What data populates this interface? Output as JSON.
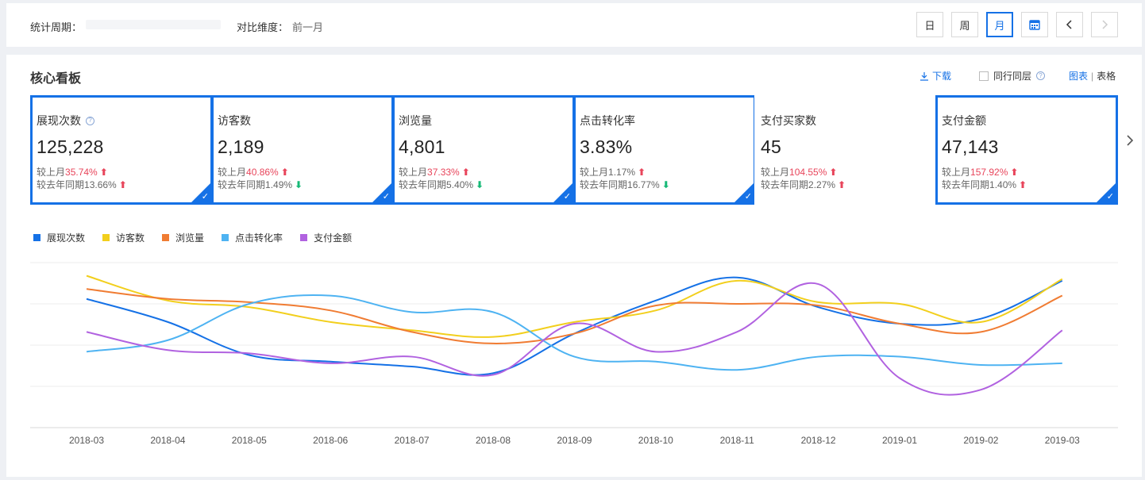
{
  "topbar": {
    "period_label": "统计周期：",
    "compare_label": "对比维度：",
    "compare_value": "前一月",
    "buttons": {
      "day": "日",
      "week": "周",
      "month": "月"
    }
  },
  "main": {
    "title": "核心看板",
    "download": "下载",
    "peer": "同行同层",
    "view_chart": "图表",
    "view_sep": "|",
    "view_table": "表格"
  },
  "cards": [
    {
      "name": "展现次数",
      "value": "125,228",
      "mom_label": "较上月",
      "mom": "35.74%",
      "mom_dir": "up",
      "yoy_label": "较去年同期",
      "yoy": "13.66%",
      "yoy_dir": "up",
      "selected": true,
      "help": true
    },
    {
      "name": "访客数",
      "value": "2,189",
      "mom_label": "较上月",
      "mom": "40.86%",
      "mom_dir": "up",
      "yoy_label": "较去年同期",
      "yoy": "1.49%",
      "yoy_dir": "down",
      "selected": true
    },
    {
      "name": "浏览量",
      "value": "4,801",
      "mom_label": "较上月",
      "mom": "37.33%",
      "mom_dir": "up",
      "yoy_label": "较去年同期",
      "yoy": "5.40%",
      "yoy_dir": "down",
      "selected": true
    },
    {
      "name": "点击转化率",
      "value": "3.83%",
      "mom_label": "较上月",
      "mom": "1.17%",
      "mom_dir": "up",
      "yoy_label": "较去年同期",
      "yoy": "16.77%",
      "yoy_dir": "down",
      "selected": true,
      "mom_plain": true
    },
    {
      "name": "支付买家数",
      "value": "45",
      "mom_label": "较上月",
      "mom": "104.55%",
      "mom_dir": "up",
      "yoy_label": "较去年同期",
      "yoy": "2.27%",
      "yoy_dir": "up",
      "selected": false
    },
    {
      "name": "支付金额",
      "value": "47,143",
      "mom_label": "较上月",
      "mom": "157.92%",
      "mom_dir": "up",
      "yoy_label": "较去年同期",
      "yoy": "1.40%",
      "yoy_dir": "up",
      "selected": true
    }
  ],
  "colors": {
    "accent": "#1571e6",
    "up": "#e8455b",
    "down": "#17b977"
  },
  "chart_data": {
    "type": "line",
    "x": [
      "2018-03",
      "2018-04",
      "2018-05",
      "2018-06",
      "2018-07",
      "2018-08",
      "2018-09",
      "2018-10",
      "2018-11",
      "2018-12",
      "2019-01",
      "2019-02",
      "2019-03"
    ],
    "ylim": [
      0,
      100
    ],
    "grid": true,
    "legend_position": "top-left",
    "series": [
      {
        "name": "展现次数",
        "color": "#1571e6",
        "values": [
          78,
          64,
          44,
          40,
          37,
          33,
          57,
          77,
          91,
          73,
          63,
          66,
          89
        ]
      },
      {
        "name": "访客数",
        "color": "#f2cf1d",
        "values": [
          92,
          77,
          73,
          64,
          59,
          55,
          64,
          71,
          89,
          76,
          75,
          64,
          90
        ]
      },
      {
        "name": "浏览量",
        "color": "#f07c33",
        "values": [
          84,
          78,
          76,
          71,
          58,
          51,
          57,
          74,
          75,
          74,
          63,
          58,
          80
        ]
      },
      {
        "name": "点击转化率",
        "color": "#4eb3f2",
        "values": [
          46,
          53,
          75,
          80,
          70,
          70,
          43,
          40,
          35,
          43,
          43,
          38,
          39
        ]
      },
      {
        "name": "支付金额",
        "color": "#b162e0",
        "values": [
          58,
          47,
          45,
          39,
          43,
          32,
          63,
          46,
          58,
          87,
          30,
          23,
          59
        ]
      }
    ]
  }
}
